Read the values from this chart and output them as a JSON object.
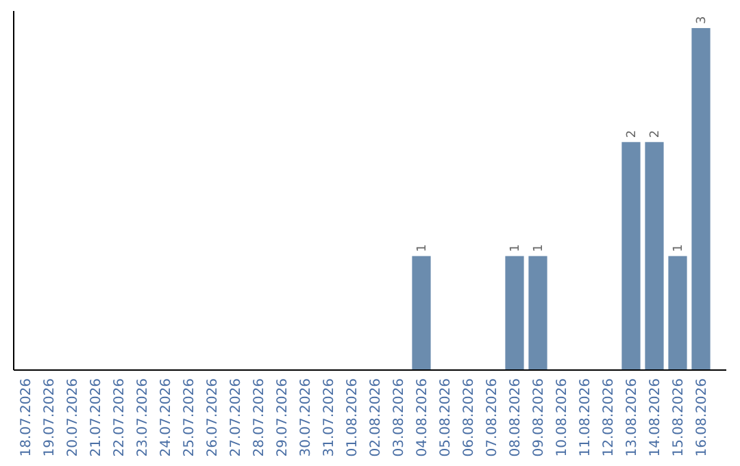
{
  "chart_data": {
    "type": "bar",
    "categories": [
      "18.07.2026",
      "19.07.2026",
      "20.07.2026",
      "21.07.2026",
      "22.07.2026",
      "23.07.2026",
      "24.07.2026",
      "25.07.2026",
      "26.07.2026",
      "27.07.2026",
      "28.07.2026",
      "29.07.2026",
      "30.07.2026",
      "31.07.2026",
      "01.08.2026",
      "02.08.2026",
      "03.08.2026",
      "04.08.2026",
      "05.08.2026",
      "06.08.2026",
      "07.08.2026",
      "08.08.2026",
      "09.08.2026",
      "10.08.2026",
      "11.08.2026",
      "12.08.2026",
      "13.08.2026",
      "14.08.2026",
      "15.08.2026",
      "16.08.2026"
    ],
    "values": [
      null,
      null,
      null,
      null,
      null,
      null,
      null,
      null,
      null,
      null,
      null,
      null,
      null,
      null,
      null,
      null,
      null,
      1,
      null,
      null,
      null,
      1,
      1,
      null,
      null,
      null,
      2,
      2,
      1,
      3
    ],
    "value_labels": [
      null,
      null,
      null,
      null,
      null,
      null,
      null,
      null,
      null,
      null,
      null,
      null,
      null,
      null,
      null,
      null,
      null,
      "1",
      null,
      null,
      null,
      "1",
      "1",
      null,
      null,
      null,
      "2",
      "2",
      "1",
      "3"
    ],
    "color": "#6b8cae",
    "tick_labels": "x"
  }
}
